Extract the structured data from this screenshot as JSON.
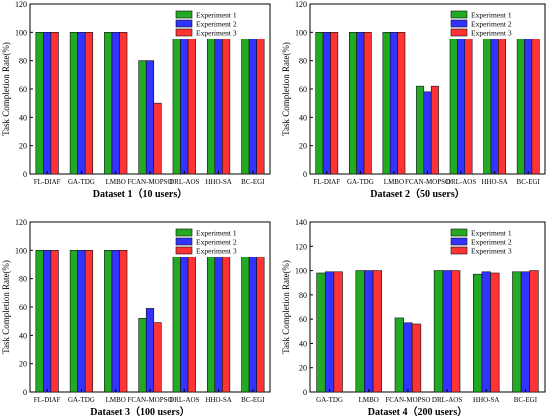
{
  "legend_entries": [
    "Experiment 1",
    "Experiment 2",
    "Experiment 3"
  ],
  "colors": {
    "series": [
      "#22aa22",
      "#3333ff",
      "#ff3333"
    ],
    "stroke": "#111111"
  },
  "chart_data": [
    {
      "type": "bar",
      "title": "Dataset 1（10 users）",
      "ylabel": "Task Completion Rate(%)",
      "ylim": [
        0,
        120
      ],
      "yticks": [
        0,
        20,
        40,
        60,
        80,
        100,
        120
      ],
      "legend": "top-right",
      "categories": [
        "FL-DIAF",
        "GA-TDG",
        "LMBO",
        "FCAN-MOPSO",
        "DRL-AOS",
        "HHO-SA",
        "BC-EGI"
      ],
      "series": [
        {
          "name": "Experiment 1",
          "values": [
            100,
            100,
            100,
            80,
            100,
            100,
            100
          ]
        },
        {
          "name": "Experiment 2",
          "values": [
            100,
            100,
            100,
            80,
            100,
            100,
            100
          ]
        },
        {
          "name": "Experiment 3",
          "values": [
            100,
            100,
            100,
            50,
            100,
            100,
            100
          ]
        }
      ]
    },
    {
      "type": "bar",
      "title": "Dataset 2（50 users）",
      "ylabel": "Task Completion Rate(%)",
      "ylim": [
        0,
        120
      ],
      "yticks": [
        0,
        20,
        40,
        60,
        80,
        100,
        120
      ],
      "legend": "top-right",
      "categories": [
        "FL-DIAF",
        "GA-TDG",
        "LMBO",
        "FCAN-MOPSO",
        "DRL-AOS",
        "HHO-SA",
        "BC-EGI"
      ],
      "series": [
        {
          "name": "Experiment 1",
          "values": [
            100,
            100,
            100,
            62,
            100,
            100,
            98
          ]
        },
        {
          "name": "Experiment 2",
          "values": [
            100,
            100,
            100,
            58,
            100,
            100,
            100
          ]
        },
        {
          "name": "Experiment 3",
          "values": [
            100,
            100,
            100,
            62,
            100,
            100,
            100
          ]
        }
      ]
    },
    {
      "type": "bar",
      "title": "Dataset 3（100 users）",
      "ylabel": "Task Completion Rate(%)",
      "ylim": [
        0,
        120
      ],
      "yticks": [
        0,
        20,
        40,
        60,
        80,
        100,
        120
      ],
      "legend": "top-right",
      "categories": [
        "FL-DIAF",
        "GA-TDG",
        "LMBO",
        "FCAN-MOPSO",
        "DRL-AOS",
        "HHO-SA",
        "BC-EGI"
      ],
      "series": [
        {
          "name": "Experiment 1",
          "values": [
            100,
            100,
            100,
            52,
            100,
            100,
            100
          ]
        },
        {
          "name": "Experiment 2",
          "values": [
            100,
            100,
            100,
            59,
            100,
            100,
            100
          ]
        },
        {
          "name": "Experiment 3",
          "values": [
            100,
            100,
            100,
            49,
            100,
            100,
            99
          ]
        }
      ]
    },
    {
      "type": "bar",
      "title": "Dataset 4（200 users）",
      "ylabel": "Task Completion Rate(%)",
      "ylim": [
        0,
        140
      ],
      "yticks": [
        0,
        20,
        40,
        60,
        80,
        100,
        120,
        140
      ],
      "legend": "top-right",
      "categories": [
        "GA-TDG",
        "LMBO",
        "FCAN-MOPSO",
        "DRL-AOS",
        "HHO-SA",
        "BC-EGI"
      ],
      "series": [
        {
          "name": "Experiment 1",
          "values": [
            98,
            100,
            61,
            100,
            97,
            99
          ]
        },
        {
          "name": "Experiment 2",
          "values": [
            99,
            100,
            57,
            100,
            99,
            99
          ]
        },
        {
          "name": "Experiment 3",
          "values": [
            99,
            100,
            56,
            100,
            98,
            100
          ]
        }
      ]
    }
  ]
}
